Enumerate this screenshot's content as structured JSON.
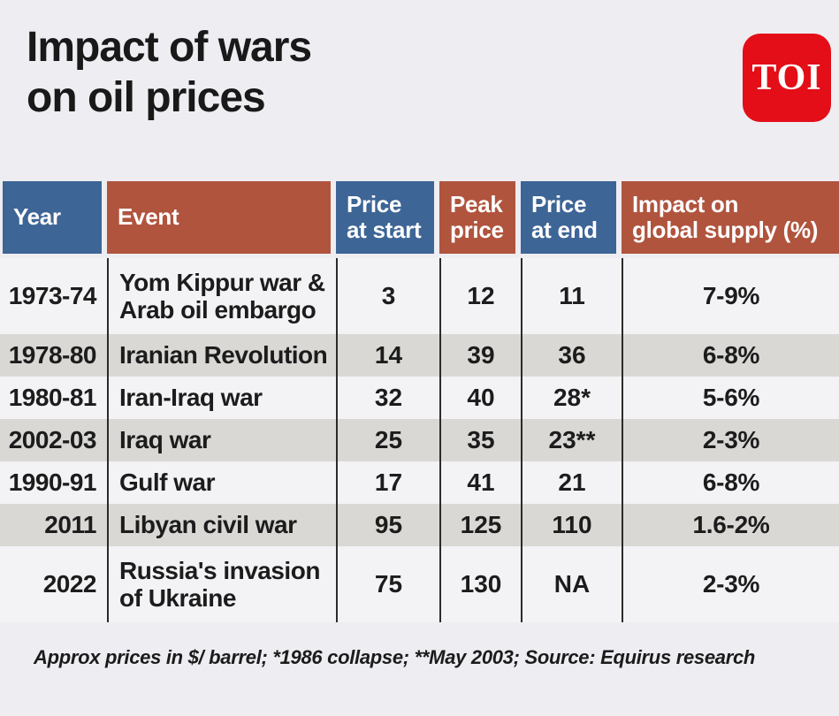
{
  "masthead": {
    "title_line1": "Impact of wars",
    "title_line2": "on oil prices",
    "logo_text": "TOI"
  },
  "table": {
    "header": {
      "year": "Year",
      "event": "Event",
      "price_start": "Price\nat start",
      "peak_price": "Peak\nprice",
      "price_end": "Price\nat end",
      "impact": "Impact on\nglobal supply (%)"
    },
    "rows": [
      {
        "year": "1973-74",
        "event": "Yom Kippur war & Arab oil embargo",
        "start": "3",
        "peak": "12",
        "end": "11",
        "impact": "7-9%"
      },
      {
        "year": "1978-80",
        "event": "Iranian Revolution",
        "start": "14",
        "peak": "39",
        "end": "36",
        "impact": "6-8%"
      },
      {
        "year": "1980-81",
        "event": "Iran-Iraq war",
        "start": "32",
        "peak": "40",
        "end": "28*",
        "impact": "5-6%"
      },
      {
        "year": "2002-03",
        "event": "Iraq war",
        "start": "25",
        "peak": "35",
        "end": "23**",
        "impact": "2-3%"
      },
      {
        "year": "1990-91",
        "event": "Gulf war",
        "start": "17",
        "peak": "41",
        "end": "21",
        "impact": "6-8%"
      },
      {
        "year": "2011",
        "event": "Libyan civil war",
        "start": "95",
        "peak": "125",
        "end": "110",
        "impact": "1.6-2%"
      },
      {
        "year": "2022",
        "event": "Russia's invasion of Ukraine",
        "start": "75",
        "peak": "130",
        "end": "NA",
        "impact": "2-3%"
      }
    ]
  },
  "footnote": "Approx prices in $/ barrel; *1986 collapse; **May 2003; Source: Equirus research",
  "colors": {
    "page_background": "#eeedf2",
    "header_blue": "#3d6595",
    "header_red": "#b0543e",
    "row_light": "#f3f3f6",
    "row_dark": "#d9d8d5",
    "divider": "#2b2b2b",
    "logo_red": "#e30e17",
    "text": "#1c1c1c"
  },
  "chart_data": {
    "type": "table",
    "title": "Impact of wars on oil prices",
    "columns": [
      "Year",
      "Event",
      "Price at start",
      "Peak price",
      "Price at end",
      "Impact on global supply (%)"
    ],
    "rows": [
      [
        "1973-74",
        "Yom Kippur war & Arab oil embargo",
        3,
        12,
        11,
        "7-9%"
      ],
      [
        "1978-80",
        "Iranian Revolution",
        14,
        39,
        36,
        "6-8%"
      ],
      [
        "1980-81",
        "Iran-Iraq war",
        32,
        40,
        "28*",
        "5-6%"
      ],
      [
        "2002-03",
        "Iraq war",
        25,
        35,
        "23**",
        "2-3%"
      ],
      [
        "1990-91",
        "Gulf war",
        17,
        41,
        21,
        "6-8%"
      ],
      [
        "2011",
        "Libyan civil war",
        95,
        125,
        110,
        "1.6-2%"
      ],
      [
        "2022",
        "Russia's invasion of Ukraine",
        75,
        130,
        "NA",
        "2-3%"
      ]
    ],
    "note": "Approx prices in $/ barrel; *1986 collapse; **May 2003; Source: Equirus research"
  }
}
